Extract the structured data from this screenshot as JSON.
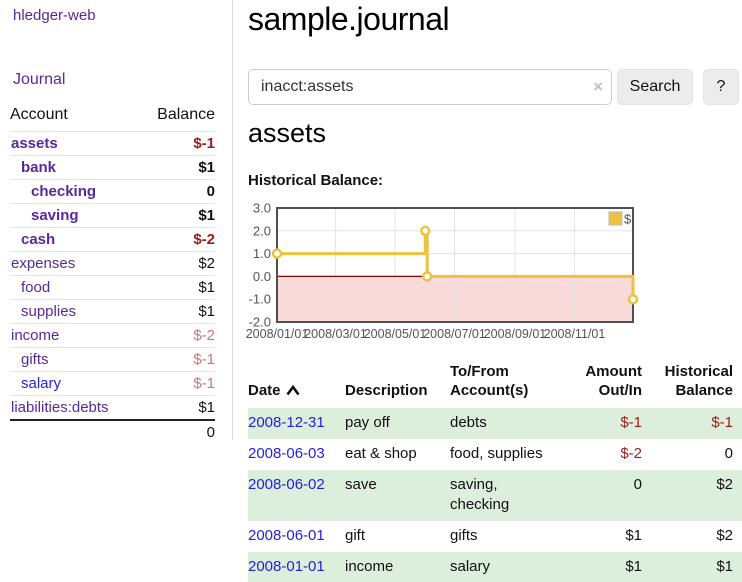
{
  "sidebar": {
    "brand": "hledger-web",
    "journal_label": "Journal",
    "accounts_header": {
      "account": "Account",
      "balance": "Balance"
    },
    "accounts": [
      {
        "name": "assets",
        "level": 1,
        "bold": true,
        "balance": "$-1",
        "balance_tone": "negative-strong"
      },
      {
        "name": "bank",
        "level": 2,
        "bold": true,
        "balance": "$1",
        "balance_tone": "normal"
      },
      {
        "name": "checking",
        "level": 3,
        "bold": true,
        "balance": "0",
        "balance_tone": "normal"
      },
      {
        "name": "saving",
        "level": 3,
        "bold": true,
        "balance": "$1",
        "balance_tone": "normal"
      },
      {
        "name": "cash",
        "level": 2,
        "bold": true,
        "balance": "$-2",
        "balance_tone": "negative-strong"
      },
      {
        "name": "expenses",
        "level": 1,
        "bold": false,
        "balance": "$2",
        "balance_tone": "normal"
      },
      {
        "name": "food",
        "level": 2,
        "bold": false,
        "balance": "$1",
        "balance_tone": "normal"
      },
      {
        "name": "supplies",
        "level": 2,
        "bold": false,
        "balance": "$1",
        "balance_tone": "normal"
      },
      {
        "name": "income",
        "level": 1,
        "bold": false,
        "balance": "$-2",
        "balance_tone": "negative-soft"
      },
      {
        "name": "gifts",
        "level": 2,
        "bold": false,
        "balance": "$-1",
        "balance_tone": "negative-soft"
      },
      {
        "name": "salary",
        "level": 2,
        "bold": false,
        "balance": "$-1",
        "balance_tone": "negative-soft",
        "link_color": "blue"
      },
      {
        "name": "liabilities:debts",
        "level": 1,
        "bold": false,
        "balance": "$1",
        "balance_tone": "normal"
      }
    ],
    "total": "0"
  },
  "main": {
    "title": "sample.journal",
    "search": {
      "value": "inacct:assets",
      "clear_icon": "×",
      "button_label": "Search",
      "help_label": "?"
    },
    "account_heading": "assets",
    "chart_label": "Historical Balance:"
  },
  "chart_data": {
    "type": "line",
    "step": true,
    "title": "Historical Balance",
    "series": [
      {
        "name": "$",
        "points": [
          {
            "date": "2008-01-01",
            "value": 1
          },
          {
            "date": "2008-06-01",
            "value": 2
          },
          {
            "date": "2008-06-03",
            "value": 0
          },
          {
            "date": "2008-12-31",
            "value": -1
          }
        ]
      }
    ],
    "xlim": [
      "2008-01-01",
      "2008-12-31"
    ],
    "ylim": [
      -2,
      3
    ],
    "x_ticks": [
      {
        "label": "2008/01/01",
        "date": "2008-01-01"
      },
      {
        "label": "2008/03/01",
        "date": "2008-03-01"
      },
      {
        "label": "2008/05/01",
        "date": "2008-05-01"
      },
      {
        "label": "2008/07/01",
        "date": "2008-07-01"
      },
      {
        "label": "2008/09/01",
        "date": "2008-09-01"
      },
      {
        "label": "2008/11/01",
        "date": "2008-11-01"
      }
    ],
    "y_ticks": [
      {
        "label": "3.0",
        "value": 3
      },
      {
        "label": "2.0",
        "value": 2
      },
      {
        "label": "1.0",
        "value": 1
      },
      {
        "label": "0.0",
        "value": 0
      },
      {
        "label": "-1.0",
        "value": -1
      },
      {
        "label": "-2.0",
        "value": -2
      }
    ],
    "legend": {
      "label": "$",
      "position": "top-right"
    },
    "grid": true,
    "colors": {
      "line": "#edc240",
      "marker_fill": "#ffffff",
      "negative_fill": "#fbdada",
      "zero_line": "#8b0000",
      "border": "#4f4f4f",
      "gridline": "#e3e3e3",
      "tick_text": "#545454"
    }
  },
  "register": {
    "headers": {
      "date": "Date",
      "description": "Description",
      "accounts_line1": "To/From",
      "accounts_line2": "Account(s)",
      "amount_line1": "Amount",
      "amount_line2": "Out/In",
      "balance_line1": "Historical",
      "balance_line2": "Balance"
    },
    "rows": [
      {
        "date": "2008-12-31",
        "description": "pay off",
        "accounts": "debts",
        "amount": "$-1",
        "amount_negative": true,
        "balance": "$-1",
        "balance_negative": true
      },
      {
        "date": "2008-06-03",
        "description": "eat & shop",
        "accounts": "food, supplies",
        "amount": "$-2",
        "amount_negative": true,
        "balance": "0",
        "balance_negative": false
      },
      {
        "date": "2008-06-02",
        "description": "save",
        "accounts": "saving, checking",
        "amount": "0",
        "amount_negative": false,
        "balance": "$2",
        "balance_negative": false
      },
      {
        "date": "2008-06-01",
        "description": "gift",
        "accounts": "gifts",
        "amount": "$1",
        "amount_negative": false,
        "balance": "$2",
        "balance_negative": false
      },
      {
        "date": "2008-01-01",
        "description": "income",
        "accounts": "salary",
        "amount": "$1",
        "amount_negative": false,
        "balance": "$1",
        "balance_negative": false
      }
    ]
  }
}
